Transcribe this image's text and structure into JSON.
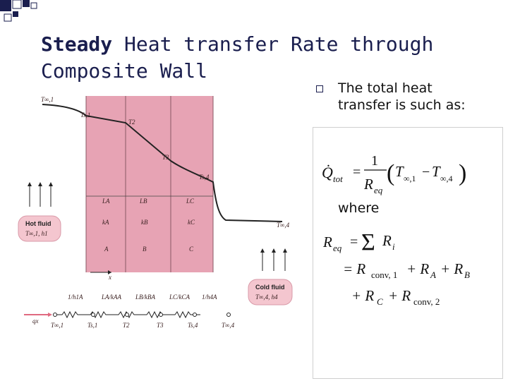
{
  "title": {
    "bold": "Steady",
    "rest_line1": " Heat transfer Rate through",
    "line2": "Composite Wall"
  },
  "bullet": {
    "line1": "The total heat",
    "line2": "transfer is such as:"
  },
  "where_label": "where",
  "icons": [
    "corner-squares-icon",
    "square-bullet-icon"
  ],
  "colors": {
    "title": "#1a1e4e",
    "wall": "#e7a3b4",
    "fluid_box": "#f4c6cf",
    "arrow": "#e06a80"
  },
  "figure": {
    "temps_top": [
      "T∞,1",
      "Ts,1",
      "T2",
      "T3",
      "Ts,4",
      "T∞,4"
    ],
    "lengths": [
      "LA",
      "LB",
      "LC"
    ],
    "conductivities": [
      "kA",
      "kB",
      "kC"
    ],
    "layers": [
      "A",
      "B",
      "C"
    ],
    "hot_fluid": {
      "label": "Hot fluid",
      "sub": "T∞,1, h1"
    },
    "cold_fluid": {
      "label": "Cold fluid",
      "sub": "T∞,4, h4"
    },
    "x_axis": "x",
    "resistances": [
      "1/h1A",
      "LA/kAA",
      "LB/kBA",
      "LC/kCA",
      "1/h4A"
    ],
    "nodes": [
      "T∞,1",
      "Ts,1",
      "T2",
      "T3",
      "Ts,4",
      "T∞,4"
    ],
    "heat_flow": "qx"
  },
  "equations": {
    "q_lhs": "Q̇",
    "q_sub": "tot",
    "eq": "=",
    "one": "1",
    "r": "R",
    "r_sub": "eq",
    "paren_open": "(",
    "paren_close": ")",
    "t1": "T",
    "t1_sub": "∞,1",
    "minus": "−",
    "t4": "T",
    "t4_sub": "∞,4",
    "req_lhs": "R",
    "req_sub": "eq",
    "sum": "Σ",
    "ri": "R",
    "ri_sub": "i",
    "line2_a": "= R",
    "line2_a_sub": "conv, 1",
    "line2_b": "+ R",
    "line2_b_sub": "A",
    "line2_c": "+ R",
    "line2_c_sub": "B",
    "line3_a": "+ R",
    "line3_a_sub": "C",
    "line3_b": "+ R",
    "line3_b_sub": "conv, 2"
  }
}
